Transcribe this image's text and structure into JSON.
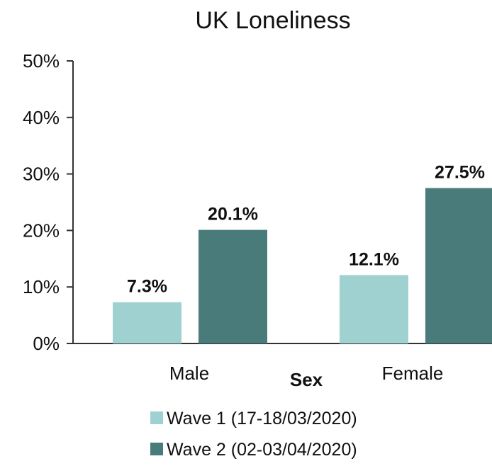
{
  "chart_data": {
    "type": "bar",
    "title": "UK Loneliness",
    "xlabel": "Sex",
    "ylabel": "",
    "categories": [
      "Male",
      "Female"
    ],
    "series": [
      {
        "name": "Wave 1 (17-18/03/2020)",
        "color": "#9fd1d1",
        "values": [
          7.3,
          12.1
        ]
      },
      {
        "name": "Wave 2 (02-03/04/2020)",
        "color": "#4a7b7b",
        "values": [
          20.1,
          27.5
        ]
      }
    ],
    "data_labels": [
      [
        "7.3%",
        "12.1%"
      ],
      [
        "20.1%",
        "27.5%"
      ]
    ],
    "ylim": [
      0,
      50
    ],
    "yticks": [
      0,
      10,
      20,
      30,
      40,
      50
    ],
    "ytick_labels": [
      "0%",
      "10%",
      "20%",
      "30%",
      "40%",
      "50%"
    ],
    "grid": false,
    "legend_position": "bottom"
  }
}
